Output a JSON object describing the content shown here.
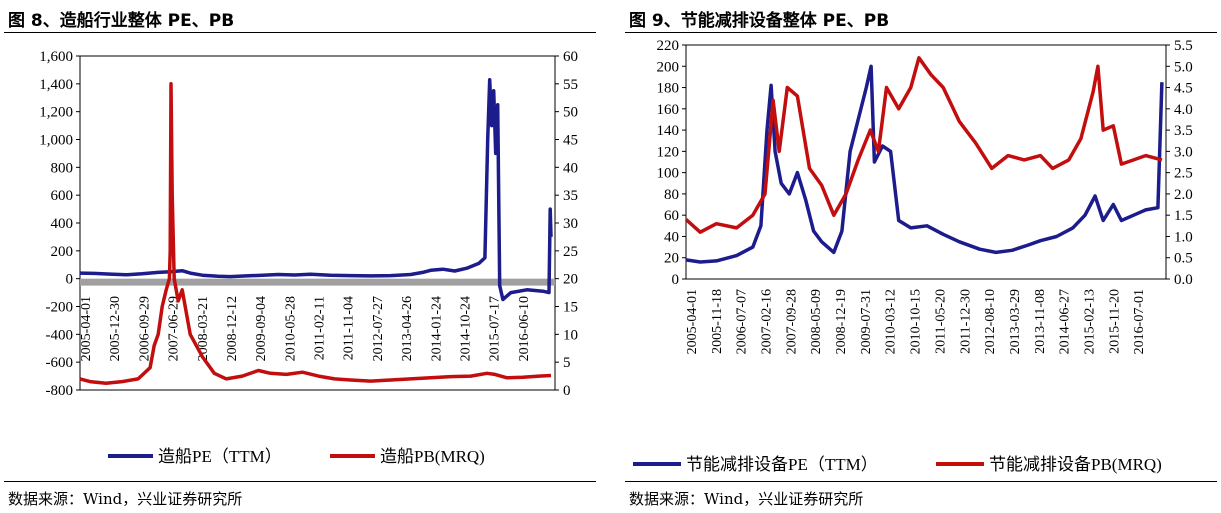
{
  "colors": {
    "pe": "#1c1c8c",
    "pb": "#c20e0e",
    "zero_band": "#a0a0a0"
  },
  "left": {
    "title": "图 8、造船行业整体 PE、PB",
    "source": "数据来源：Wind，兴业证券研究所",
    "legend": {
      "pe": "造船PE（TTM）",
      "pb": "造船PB(MRQ)"
    },
    "chart_data": {
      "type": "line",
      "title": "图 8、造船行业整体 PE、PB",
      "x_dates": [
        "2005-04-01",
        "2005-12-30",
        "2006-09-29",
        "2007-06-29",
        "2008-03-21",
        "2008-12-12",
        "2009-09-04",
        "2010-05-28",
        "2011-02-11",
        "2011-11-04",
        "2012-07-27",
        "2013-04-26",
        "2014-01-24",
        "2014-10-24",
        "2015-07-17",
        "2016-06-10"
      ],
      "x_range": [
        2005.25,
        2017.1
      ],
      "y_left": {
        "min": -800,
        "max": 1600,
        "ticks": [
          "1,600",
          "1,400",
          "1,200",
          "1,000",
          "800",
          "600",
          "400",
          "200",
          "0",
          "-200",
          "-400",
          "-600",
          "-800"
        ]
      },
      "y_right": {
        "min": 0,
        "max": 60,
        "ticks": [
          "60",
          "55",
          "50",
          "45",
          "40",
          "35",
          "30",
          "25",
          "20",
          "15",
          "10",
          "5",
          "0"
        ]
      },
      "series": [
        {
          "name": "造船PE（TTM）",
          "axis": "left",
          "points": [
            [
              2005.25,
              40
            ],
            [
              2005.6,
              38
            ],
            [
              2006.0,
              33
            ],
            [
              2006.4,
              28
            ],
            [
              2006.8,
              35
            ],
            [
              2007.2,
              45
            ],
            [
              2007.5,
              50
            ],
            [
              2007.8,
              57
            ],
            [
              2008.0,
              40
            ],
            [
              2008.3,
              25
            ],
            [
              2008.7,
              18
            ],
            [
              2009.0,
              15
            ],
            [
              2009.4,
              20
            ],
            [
              2009.8,
              25
            ],
            [
              2010.2,
              30
            ],
            [
              2010.6,
              26
            ],
            [
              2011.0,
              32
            ],
            [
              2011.5,
              25
            ],
            [
              2012.0,
              22
            ],
            [
              2012.5,
              20
            ],
            [
              2013.0,
              22
            ],
            [
              2013.5,
              30
            ],
            [
              2013.8,
              45
            ],
            [
              2014.0,
              60
            ],
            [
              2014.3,
              68
            ],
            [
              2014.6,
              55
            ],
            [
              2014.9,
              75
            ],
            [
              2015.2,
              110
            ],
            [
              2015.35,
              150
            ],
            [
              2015.42,
              1000
            ],
            [
              2015.47,
              1430
            ],
            [
              2015.52,
              1100
            ],
            [
              2015.57,
              1350
            ],
            [
              2015.62,
              900
            ],
            [
              2015.67,
              1250
            ],
            [
              2015.72,
              -50
            ],
            [
              2015.8,
              -150
            ],
            [
              2016.0,
              -100
            ],
            [
              2016.4,
              -80
            ],
            [
              2016.8,
              -90
            ],
            [
              2016.95,
              -100
            ],
            [
              2016.98,
              500
            ],
            [
              2017.0,
              300
            ]
          ]
        },
        {
          "name": "造船PB(MRQ)",
          "axis": "right",
          "points": [
            [
              2005.25,
              2
            ],
            [
              2005.5,
              1.5
            ],
            [
              2005.9,
              1.2
            ],
            [
              2006.3,
              1.5
            ],
            [
              2006.7,
              2
            ],
            [
              2007.0,
              4
            ],
            [
              2007.1,
              8
            ],
            [
              2007.2,
              10
            ],
            [
              2007.3,
              15
            ],
            [
              2007.4,
              18
            ],
            [
              2007.48,
              20
            ],
            [
              2007.5,
              25
            ],
            [
              2007.52,
              55
            ],
            [
              2007.55,
              35
            ],
            [
              2007.6,
              20
            ],
            [
              2007.7,
              16
            ],
            [
              2007.8,
              18
            ],
            [
              2008.0,
              10
            ],
            [
              2008.3,
              6
            ],
            [
              2008.6,
              3
            ],
            [
              2008.9,
              2
            ],
            [
              2009.3,
              2.5
            ],
            [
              2009.7,
              3.5
            ],
            [
              2010.0,
              3
            ],
            [
              2010.4,
              2.8
            ],
            [
              2010.8,
              3.2
            ],
            [
              2011.2,
              2.5
            ],
            [
              2011.6,
              2
            ],
            [
              2012.0,
              1.8
            ],
            [
              2012.5,
              1.6
            ],
            [
              2013.0,
              1.8
            ],
            [
              2013.5,
              2
            ],
            [
              2014.0,
              2.2
            ],
            [
              2014.5,
              2.4
            ],
            [
              2015.0,
              2.5
            ],
            [
              2015.4,
              3
            ],
            [
              2015.6,
              2.8
            ],
            [
              2015.9,
              2.2
            ],
            [
              2016.3,
              2.3
            ],
            [
              2016.7,
              2.5
            ],
            [
              2017.0,
              2.6
            ]
          ]
        }
      ],
      "zero_band": {
        "from": -50,
        "to": 0
      }
    }
  },
  "right": {
    "title": "图 9、节能减排设备整体 PE、PB",
    "source": "数据来源：Wind，兴业证券研究所",
    "legend": {
      "pe": "节能减排设备PE（TTM）",
      "pb": "节能减排设备PB(MRQ)"
    },
    "chart_data": {
      "type": "line",
      "title": "图 9、节能减排设备整体 PE、PB",
      "x_dates": [
        "2005-04-01",
        "2005-11-18",
        "2006-07-07",
        "2007-02-16",
        "2007-09-28",
        "2008-05-09",
        "2008-12-19",
        "2009-07-31",
        "2010-03-12",
        "2010-10-15",
        "2011-05-20",
        "2011-12-30",
        "2012-08-10",
        "2013-03-29",
        "2013-11-08",
        "2014-06-27",
        "2015-02-13",
        "2015-11-20",
        "2016-07-01"
      ],
      "x_range": [
        2005.25,
        2017.1
      ],
      "y_left": {
        "min": 0,
        "max": 220,
        "ticks": [
          "220",
          "200",
          "180",
          "160",
          "140",
          "120",
          "100",
          "80",
          "60",
          "40",
          "20",
          "0"
        ]
      },
      "y_right": {
        "min": 0,
        "max": 5.5,
        "ticks": [
          "5.5",
          "5.0",
          "4.5",
          "4.0",
          "3.5",
          "3.0",
          "2.5",
          "2.0",
          "1.5",
          "1.0",
          "0.5",
          "0.0"
        ]
      },
      "series": [
        {
          "name": "节能减排设备PE（TTM）",
          "axis": "left",
          "points": [
            [
              2005.25,
              18
            ],
            [
              2005.6,
              16
            ],
            [
              2006.0,
              17
            ],
            [
              2006.5,
              22
            ],
            [
              2006.9,
              30
            ],
            [
              2007.1,
              50
            ],
            [
              2007.25,
              140
            ],
            [
              2007.35,
              182
            ],
            [
              2007.45,
              120
            ],
            [
              2007.6,
              90
            ],
            [
              2007.8,
              80
            ],
            [
              2008.0,
              100
            ],
            [
              2008.2,
              75
            ],
            [
              2008.4,
              45
            ],
            [
              2008.6,
              35
            ],
            [
              2008.9,
              25
            ],
            [
              2009.1,
              45
            ],
            [
              2009.3,
              120
            ],
            [
              2009.5,
              150
            ],
            [
              2009.7,
              180
            ],
            [
              2009.82,
              200
            ],
            [
              2009.9,
              110
            ],
            [
              2010.1,
              125
            ],
            [
              2010.3,
              120
            ],
            [
              2010.5,
              55
            ],
            [
              2010.8,
              48
            ],
            [
              2011.2,
              50
            ],
            [
              2011.6,
              42
            ],
            [
              2012.0,
              35
            ],
            [
              2012.5,
              28
            ],
            [
              2012.9,
              25
            ],
            [
              2013.3,
              27
            ],
            [
              2013.7,
              32
            ],
            [
              2014.0,
              36
            ],
            [
              2014.4,
              40
            ],
            [
              2014.8,
              48
            ],
            [
              2015.1,
              60
            ],
            [
              2015.35,
              78
            ],
            [
              2015.55,
              55
            ],
            [
              2015.8,
              70
            ],
            [
              2016.0,
              55
            ],
            [
              2016.3,
              60
            ],
            [
              2016.6,
              65
            ],
            [
              2016.9,
              67
            ],
            [
              2017.0,
              185
            ]
          ]
        },
        {
          "name": "节能减排设备PB(MRQ)",
          "axis": "right",
          "points": [
            [
              2005.25,
              1.4
            ],
            [
              2005.6,
              1.1
            ],
            [
              2006.0,
              1.3
            ],
            [
              2006.5,
              1.2
            ],
            [
              2006.9,
              1.5
            ],
            [
              2007.2,
              2
            ],
            [
              2007.4,
              4.2
            ],
            [
              2007.55,
              3
            ],
            [
              2007.75,
              4.5
            ],
            [
              2008.0,
              4.3
            ],
            [
              2008.3,
              2.6
            ],
            [
              2008.6,
              2.2
            ],
            [
              2008.9,
              1.5
            ],
            [
              2009.2,
              2
            ],
            [
              2009.5,
              2.8
            ],
            [
              2009.8,
              3.5
            ],
            [
              2010.0,
              3
            ],
            [
              2010.2,
              4.5
            ],
            [
              2010.5,
              4
            ],
            [
              2010.8,
              4.5
            ],
            [
              2011.0,
              5.2
            ],
            [
              2011.3,
              4.8
            ],
            [
              2011.6,
              4.5
            ],
            [
              2012.0,
              3.7
            ],
            [
              2012.4,
              3.2
            ],
            [
              2012.8,
              2.6
            ],
            [
              2013.2,
              2.9
            ],
            [
              2013.6,
              2.8
            ],
            [
              2014.0,
              2.9
            ],
            [
              2014.3,
              2.6
            ],
            [
              2014.7,
              2.8
            ],
            [
              2015.0,
              3.3
            ],
            [
              2015.3,
              4.4
            ],
            [
              2015.42,
              5.0
            ],
            [
              2015.55,
              3.5
            ],
            [
              2015.8,
              3.6
            ],
            [
              2016.0,
              2.7
            ],
            [
              2016.3,
              2.8
            ],
            [
              2016.6,
              2.9
            ],
            [
              2017.0,
              2.8
            ]
          ]
        }
      ]
    }
  }
}
